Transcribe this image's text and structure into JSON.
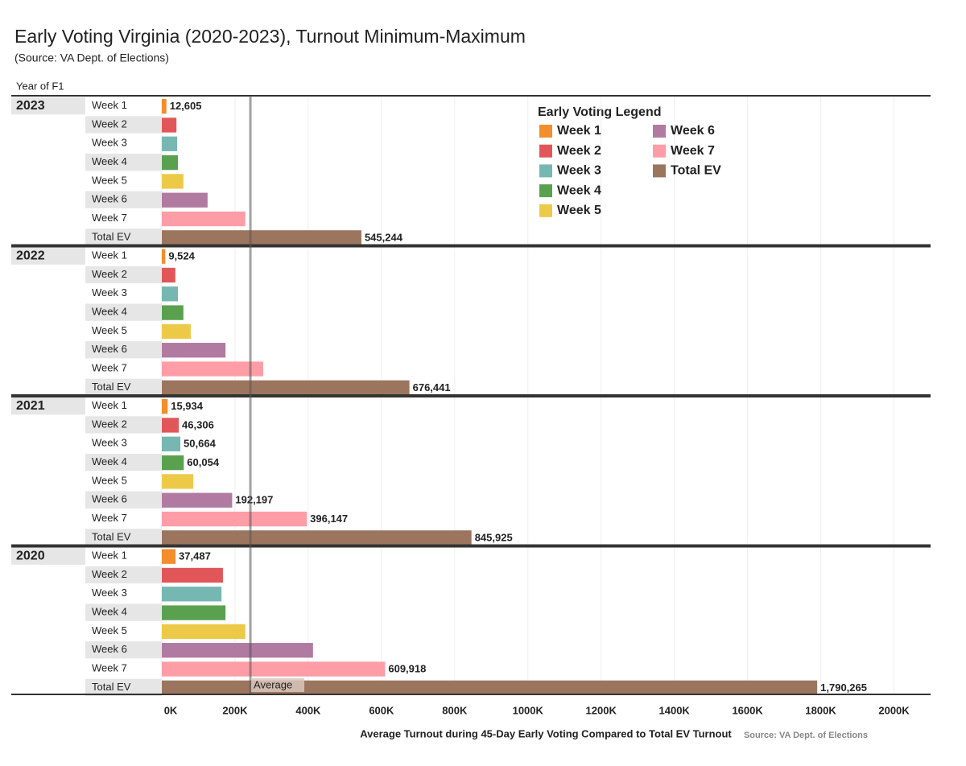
{
  "chart_data": {
    "type": "grouped-hbar",
    "title": "Early Voting Virginia (2020-2023), Turnout Minimum-Maximum",
    "subtitle": "(Source: VA Dept. of Elections)",
    "row_header": "Year of F1",
    "x_label": "Average Turnout during 45-Day Early Voting Compared to Total EV Turnout",
    "source_note": "Source: VA Dept. of Elections",
    "legend_title": "Early Voting Legend",
    "categories": [
      "Week 1",
      "Week 2",
      "Week 3",
      "Week 4",
      "Week 5",
      "Week 6",
      "Week 7",
      "Total EV"
    ],
    "colors": [
      "#f28e2b",
      "#e15759",
      "#76b7b2",
      "#59a14f",
      "#edc948",
      "#b07aa1",
      "#ff9da7",
      "#9c755f"
    ],
    "groups": [
      {
        "name": "2023",
        "values": [
          12605,
          40000,
          42000,
          44000,
          59000,
          125000,
          228000,
          545244
        ],
        "value_labels": [
          "12,605",
          null,
          null,
          null,
          null,
          null,
          null,
          "545,244"
        ]
      },
      {
        "name": "2022",
        "values": [
          9524,
          37000,
          44000,
          59000,
          79000,
          174000,
          277000,
          676441
        ],
        "value_labels": [
          "9,524",
          null,
          null,
          null,
          null,
          null,
          null,
          "676,441"
        ]
      },
      {
        "name": "2021",
        "values": [
          15934,
          46306,
          50664,
          60054,
          86000,
          192197,
          396147,
          845925
        ],
        "value_labels": [
          "15,934",
          "46,306",
          "50,664",
          "60,054",
          null,
          "192,197",
          "396,147",
          "845,925"
        ]
      },
      {
        "name": "2020",
        "values": [
          37487,
          167000,
          163000,
          174000,
          228000,
          413000,
          609918,
          1790265
        ],
        "value_labels": [
          "37,487",
          null,
          null,
          null,
          null,
          null,
          "609,918",
          "1,790,265"
        ]
      }
    ],
    "reference_line": {
      "value": 242000,
      "label": "Average"
    },
    "xlim": [
      0,
      2100000
    ],
    "xticks": [
      {
        "value": 0,
        "label": "0K"
      },
      {
        "value": 200000,
        "label": "200K"
      },
      {
        "value": 400000,
        "label": "400K"
      },
      {
        "value": 600000,
        "label": "600K"
      },
      {
        "value": 800000,
        "label": "800K"
      },
      {
        "value": 1000000,
        "label": "1000K"
      },
      {
        "value": 1200000,
        "label": "1200K"
      },
      {
        "value": 1400000,
        "label": "1400K"
      },
      {
        "value": 1600000,
        "label": "1600K"
      },
      {
        "value": 1800000,
        "label": "1800K"
      },
      {
        "value": 2000000,
        "label": "2000K"
      }
    ],
    "grid": true
  }
}
